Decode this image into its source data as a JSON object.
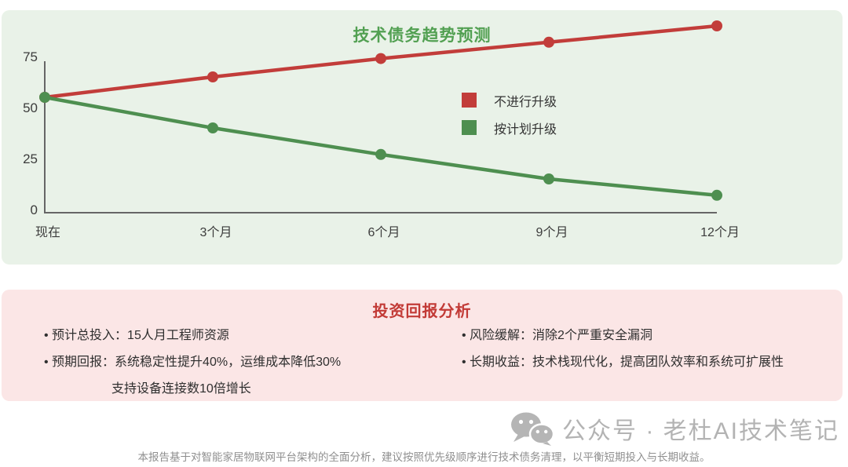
{
  "chart_panel": {
    "title": "技术债务趋势预测"
  },
  "chart_data": {
    "type": "line",
    "title": "技术债务趋势预测",
    "categories": [
      "现在",
      "3个月",
      "6个月",
      "9个月",
      "12个月"
    ],
    "series": [
      {
        "name": "不进行升级",
        "color": "#c23d3a",
        "values": [
          55,
          65,
          74,
          82,
          90
        ]
      },
      {
        "name": "按计划升级",
        "color": "#4e8f50",
        "values": [
          55,
          40,
          27,
          15,
          7
        ]
      }
    ],
    "yticks": [
      75,
      50,
      25,
      0
    ],
    "ylim": [
      0,
      95
    ],
    "grid": false,
    "legend_position": "middle-right",
    "axis_color": "#666666",
    "tick_label_color": "#3c3c3c"
  },
  "roi_panel": {
    "title": "投资回报分析",
    "left_items": [
      {
        "text": "预计总投入：15人月工程师资源"
      },
      {
        "text": "预期回报：系统稳定性提升40%，运维成本降低30%",
        "extra": "支持设备连接数10倍增长"
      }
    ],
    "right_items": [
      {
        "text": "风险缓解：消除2个严重安全漏洞"
      },
      {
        "text": "长期收益：技术栈现代化，提高团队效率和系统可扩展性"
      }
    ]
  },
  "watermark": {
    "text": "公众号 · 老杜AI技术笔记"
  },
  "footer": {
    "text": "本报告基于对智能家居物联网平台架构的全面分析，建议按照优先级顺序进行技术债务清理，以平衡短期投入与长期收益。"
  },
  "colors": {
    "chart_panel_bg": "#e9f2e8",
    "roi_panel_bg": "#fbe6e6",
    "chart_title_green": "#52a052",
    "roi_title_red": "#c23a36",
    "watermark_gray": "#b3b3b3"
  }
}
